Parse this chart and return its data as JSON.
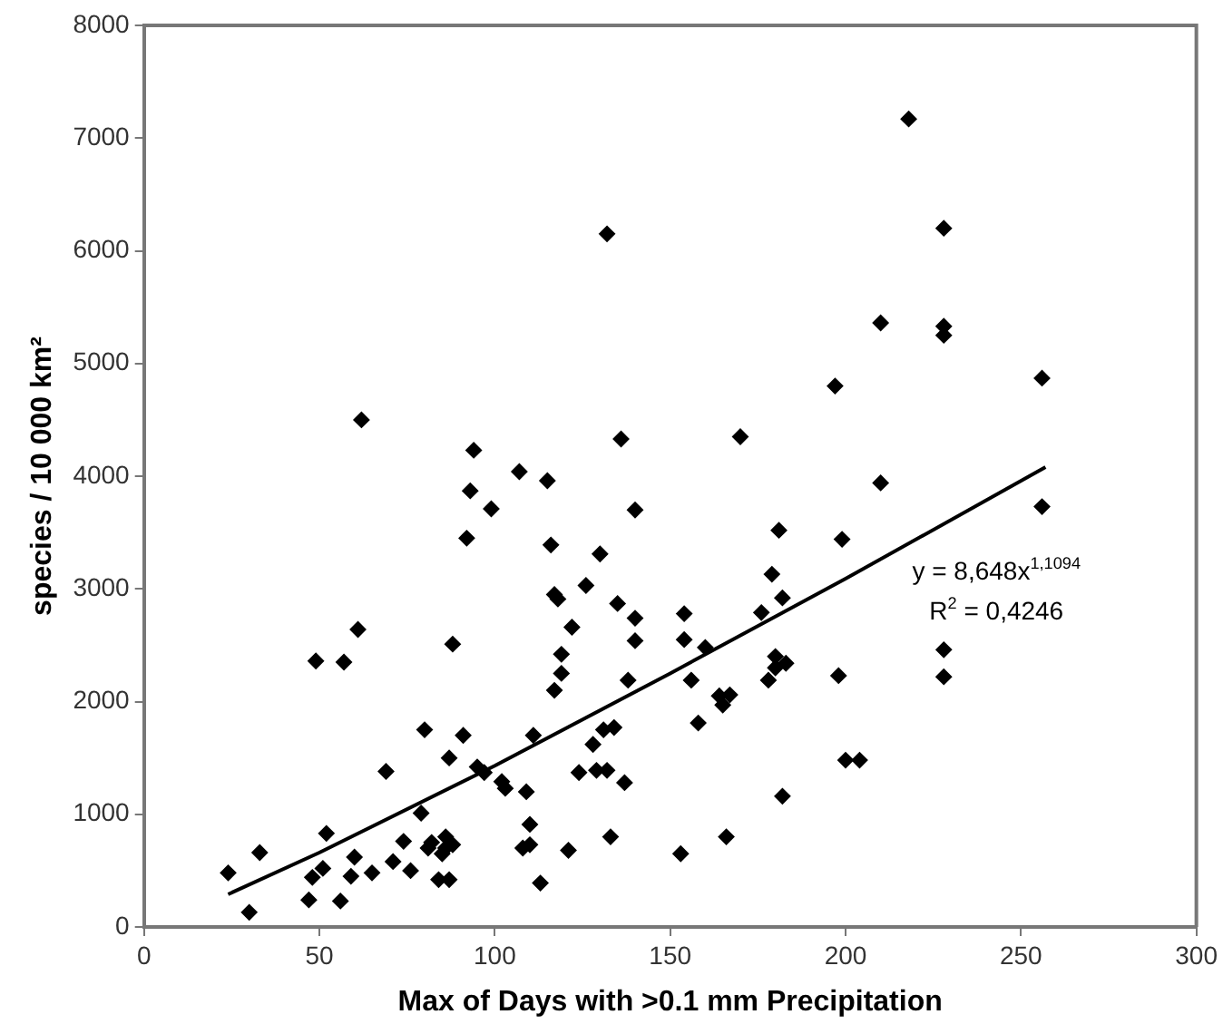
{
  "chart_data": {
    "type": "scatter",
    "xlabel": "Max of Days with >0.1 mm Precipitation",
    "ylabel": "species / 10 000 km²",
    "xlim": [
      0,
      300
    ],
    "xticks": [
      0,
      50,
      100,
      150,
      200,
      250,
      300
    ],
    "ylim": [
      0,
      8000
    ],
    "yticks": [
      0,
      1000,
      2000,
      3000,
      4000,
      5000,
      6000,
      7000,
      8000
    ],
    "grid": false,
    "legend": false,
    "marker": "diamond",
    "annotations": [
      "y = 8,648x$^{1,1094}$",
      "R$^{2}$ = 0,4246"
    ],
    "series": [
      {
        "type": "scatter",
        "color": "#000000",
        "x": [
          24,
          30,
          33,
          47,
          48,
          49,
          51,
          52,
          56,
          57,
          59,
          60,
          61,
          62,
          65,
          69,
          71,
          74,
          76,
          79,
          80,
          81,
          82,
          84,
          85,
          86,
          86,
          87,
          87,
          88,
          88,
          91,
          92,
          93,
          94,
          95,
          97,
          99,
          102,
          103,
          107,
          108,
          109,
          110,
          110,
          111,
          113,
          115,
          116,
          117,
          117,
          118,
          119,
          119,
          121,
          122,
          124,
          126,
          128,
          129,
          130,
          131,
          132,
          132,
          133,
          134,
          135,
          136,
          137,
          138,
          140,
          140,
          140,
          153,
          154,
          154,
          156,
          158,
          160,
          164,
          165,
          166,
          167,
          170,
          176,
          178,
          179,
          180,
          180,
          181,
          182,
          182,
          183,
          197,
          198,
          199,
          200,
          204,
          210,
          210,
          218,
          228,
          228,
          228,
          228,
          228,
          256,
          256
        ],
        "values": [
          480,
          130,
          660,
          240,
          440,
          2360,
          520,
          830,
          230,
          2350,
          450,
          620,
          2640,
          4500,
          480,
          1380,
          580,
          760,
          500,
          1010,
          1750,
          700,
          750,
          420,
          650,
          700,
          800,
          1500,
          420,
          2510,
          730,
          1700,
          3450,
          3870,
          4230,
          1420,
          1370,
          3710,
          1290,
          1230,
          4040,
          700,
          1200,
          910,
          730,
          1700,
          390,
          3960,
          3390,
          2950,
          2100,
          2910,
          2250,
          2420,
          680,
          2660,
          1370,
          3030,
          1620,
          1390,
          3310,
          1750,
          6150,
          1390,
          800,
          1770,
          2870,
          4330,
          1280,
          2190,
          3700,
          2540,
          2740,
          650,
          2780,
          2550,
          2190,
          1810,
          2480,
          2050,
          1970,
          800,
          2060,
          4350,
          2790,
          2190,
          3130,
          2300,
          2400,
          3520,
          1160,
          2920,
          2340,
          4800,
          2230,
          3440,
          1480,
          1480,
          5360,
          3940,
          7170,
          6200,
          5330,
          5250,
          2460,
          2220,
          4870,
          3730
        ]
      },
      {
        "type": "line",
        "color": "#000000",
        "marker": "none",
        "line_style": "solid",
        "x": [
          24,
          50,
          100,
          150,
          200,
          257
        ],
        "values": [
          290,
          660,
          1430,
          2250,
          3090,
          4080
        ]
      }
    ]
  }
}
